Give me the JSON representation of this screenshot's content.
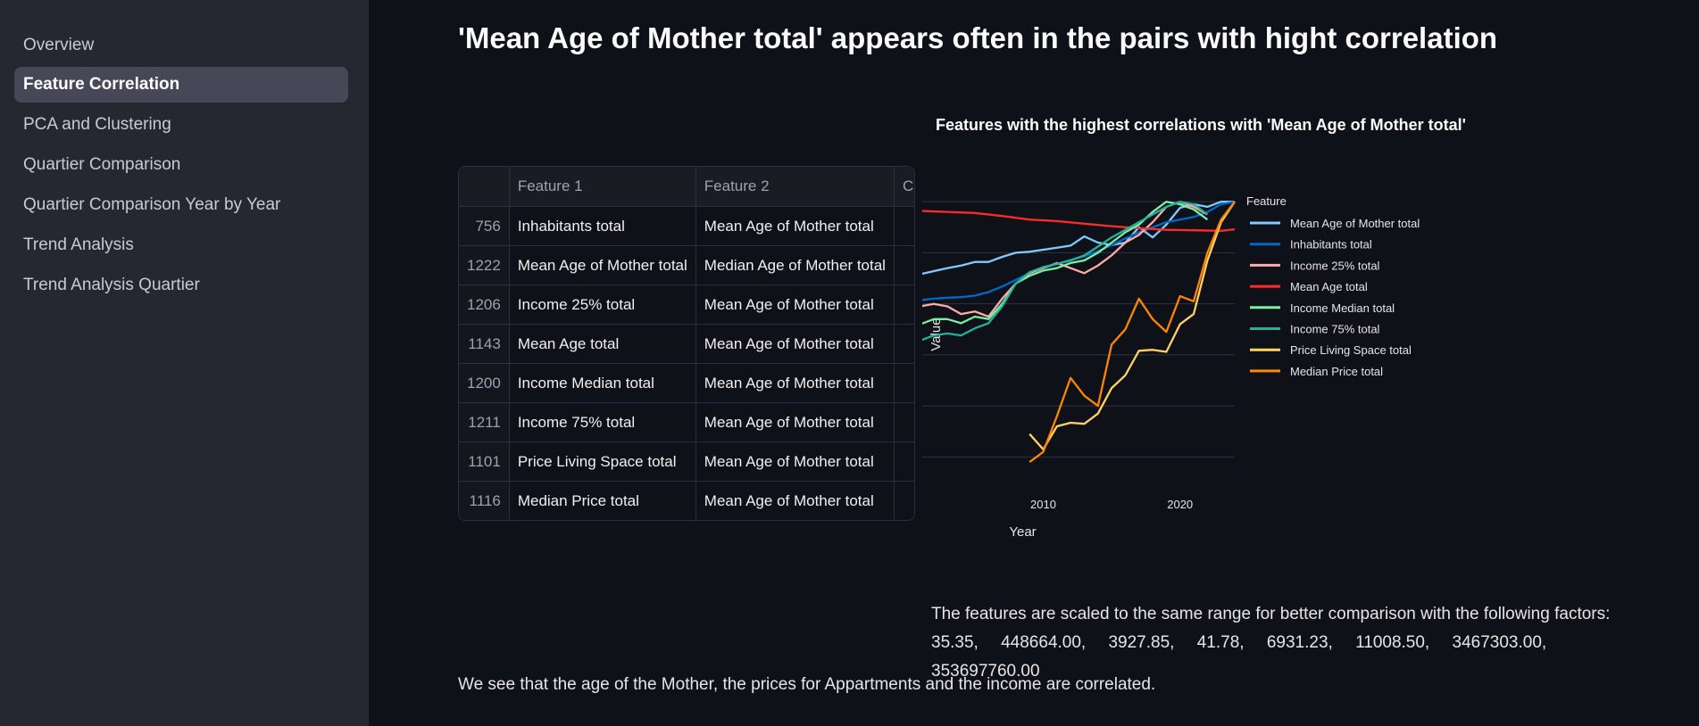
{
  "sidebar": {
    "items": [
      {
        "label": "Overview",
        "active": false
      },
      {
        "label": "Feature Correlation",
        "active": true
      },
      {
        "label": "PCA and Clustering",
        "active": false
      },
      {
        "label": "Quartier Comparison",
        "active": false
      },
      {
        "label": "Quartier Comparison Year by Year",
        "active": false
      },
      {
        "label": "Trend Analysis",
        "active": false
      },
      {
        "label": "Trend Analysis Quartier",
        "active": false
      }
    ]
  },
  "main": {
    "title": "'Mean Age of Mother total' appears often in the pairs with hight correlation",
    "table": {
      "headers": [
        "",
        "Feature 1",
        "Feature 2",
        "Co"
      ],
      "rows": [
        {
          "index": "756",
          "f1": "Inhabitants total",
          "f2": "Mean Age of Mother total"
        },
        {
          "index": "1222",
          "f1": "Mean Age of Mother total",
          "f2": "Median Age of Mother total"
        },
        {
          "index": "1206",
          "f1": "Income 25% total",
          "f2": "Mean Age of Mother total"
        },
        {
          "index": "1143",
          "f1": "Mean Age total",
          "f2": "Mean Age of Mother total"
        },
        {
          "index": "1200",
          "f1": "Income Median total",
          "f2": "Mean Age of Mother total"
        },
        {
          "index": "1211",
          "f1": "Income 75% total",
          "f2": "Mean Age of Mother total"
        },
        {
          "index": "1101",
          "f1": "Price Living Space total",
          "f2": "Mean Age of Mother total"
        },
        {
          "index": "1116",
          "f1": "Median Price total",
          "f2": "Mean Age of Mother total"
        }
      ]
    },
    "chart_title": "Features with the highest correlations with 'Mean Age of Mother total'",
    "caption": "The features are scaled to the same range for better comparison with the following factors:",
    "factors": [
      "35.35,",
      "448664.00,",
      "3927.85,",
      "41.78,",
      "6931.23,",
      "11008.50,",
      "3467303.00,",
      "353697760.00"
    ],
    "footer": "We see that the age of the Mother, the prices for Appartments and the income are correlated."
  },
  "colors": {
    "background": "#0e1117",
    "sidebar": "#262730",
    "active_item": "#464857"
  },
  "chart_data": {
    "type": "line",
    "xlabel": "Year",
    "ylabel": "Value",
    "xlim": [
      1993,
      2024
    ],
    "ylim": [
      0.45,
      1.03
    ],
    "xticks": [
      2000,
      2010,
      2020
    ],
    "yticks": [
      0.5,
      0.6,
      0.7,
      0.8,
      0.9,
      1
    ],
    "legend_title": "Feature",
    "legend_position": "right",
    "grid": true,
    "series": [
      {
        "name": "Mean Age of Mother total",
        "color": "#83c9ff",
        "x": [
          1993,
          1994,
          1995,
          1996,
          1997,
          1998,
          1999,
          2000,
          2001,
          2002,
          2003,
          2004,
          2005,
          2006,
          2007,
          2008,
          2009,
          2010,
          2011,
          2012,
          2013,
          2014,
          2015,
          2016,
          2017,
          2018,
          2019,
          2020,
          2021,
          2022,
          2023,
          2024
        ],
        "y": [
          0.835,
          0.84,
          0.84,
          0.838,
          0.848,
          0.852,
          0.85,
          0.852,
          0.858,
          0.864,
          0.87,
          0.875,
          0.882,
          0.882,
          0.892,
          0.9,
          0.902,
          0.906,
          0.91,
          0.914,
          0.932,
          0.92,
          0.915,
          0.92,
          0.95,
          0.93,
          0.955,
          0.988,
          0.995,
          0.99,
          1.0,
          1.0
        ]
      },
      {
        "name": "Inhabitants total",
        "color": "#0068c9",
        "x": [
          1993,
          1994,
          1995,
          1996,
          1997,
          1998,
          1999,
          2000,
          2001,
          2002,
          2003,
          2004,
          2005,
          2006,
          2007,
          2008,
          2009,
          2010,
          2011,
          2012,
          2013,
          2014,
          2015,
          2016,
          2017,
          2018,
          2019,
          2020,
          2021,
          2022,
          2023,
          2024
        ],
        "y": [
          0.805,
          0.805,
          0.805,
          0.803,
          0.801,
          0.801,
          0.803,
          0.805,
          0.807,
          0.81,
          0.812,
          0.813,
          0.816,
          0.823,
          0.834,
          0.847,
          0.86,
          0.87,
          0.878,
          0.886,
          0.893,
          0.903,
          0.915,
          0.928,
          0.94,
          0.95,
          0.96,
          0.965,
          0.97,
          0.98,
          0.995,
          1.0
        ]
      },
      {
        "name": "Income 25% total",
        "color": "#ffabab",
        "x": [
          1999,
          2000,
          2001,
          2002,
          2003,
          2004,
          2005,
          2006,
          2007,
          2008,
          2009,
          2010,
          2011,
          2012,
          2013,
          2014,
          2015,
          2016,
          2017,
          2018,
          2019,
          2020,
          2021,
          2022
        ],
        "y": [
          0.72,
          0.76,
          0.795,
          0.8,
          0.795,
          0.78,
          0.785,
          0.775,
          0.81,
          0.84,
          0.86,
          0.87,
          0.88,
          0.87,
          0.86,
          0.875,
          0.895,
          0.92,
          0.935,
          0.96,
          0.99,
          1.0,
          0.99,
          0.975
        ]
      },
      {
        "name": "Mean Age total",
        "color": "#ff2b2b",
        "x": [
          1993,
          1995,
          1997,
          1999,
          2001,
          2003,
          2005,
          2007,
          2009,
          2011,
          2013,
          2015,
          2017,
          2019,
          2021,
          2023,
          2024
        ],
        "y": [
          1.0,
          0.995,
          0.99,
          0.985,
          0.982,
          0.98,
          0.978,
          0.972,
          0.965,
          0.962,
          0.957,
          0.952,
          0.948,
          0.945,
          0.944,
          0.943,
          0.946
        ]
      },
      {
        "name": "Income Median total",
        "color": "#7defa1",
        "x": [
          1999,
          2000,
          2001,
          2002,
          2003,
          2004,
          2005,
          2006,
          2007,
          2008,
          2009,
          2010,
          2011,
          2012,
          2013,
          2014,
          2015,
          2016,
          2017,
          2018,
          2019,
          2020,
          2021,
          2022
        ],
        "y": [
          0.685,
          0.73,
          0.76,
          0.77,
          0.77,
          0.762,
          0.775,
          0.77,
          0.8,
          0.84,
          0.855,
          0.865,
          0.87,
          0.88,
          0.885,
          0.9,
          0.92,
          0.94,
          0.955,
          0.98,
          1.0,
          0.995,
          0.985,
          0.965
        ]
      },
      {
        "name": "Income 75% total",
        "color": "#29b09d",
        "x": [
          1999,
          2000,
          2001,
          2002,
          2003,
          2004,
          2005,
          2006,
          2007,
          2008,
          2009,
          2010,
          2011,
          2012,
          2013,
          2014,
          2015,
          2016,
          2017,
          2018,
          2019,
          2020,
          2021,
          2022
        ],
        "y": [
          0.658,
          0.695,
          0.728,
          0.738,
          0.742,
          0.738,
          0.752,
          0.762,
          0.795,
          0.84,
          0.862,
          0.872,
          0.878,
          0.885,
          0.895,
          0.912,
          0.93,
          0.945,
          0.96,
          0.975,
          0.99,
          1.0,
          0.995,
          0.975
        ]
      },
      {
        "name": "Price Living Space total",
        "color": "#ffd16a",
        "x": [
          2009,
          2010,
          2011,
          2012,
          2013,
          2014,
          2015,
          2016,
          2017,
          2018,
          2019,
          2020,
          2021,
          2022,
          2023,
          2024
        ],
        "y": [
          0.545,
          0.515,
          0.56,
          0.567,
          0.565,
          0.585,
          0.635,
          0.66,
          0.708,
          0.71,
          0.706,
          0.76,
          0.78,
          0.885,
          0.96,
          1.0
        ]
      },
      {
        "name": "Median Price total",
        "color": "#ff8700",
        "x": [
          2009,
          2010,
          2011,
          2012,
          2013,
          2014,
          2015,
          2016,
          2017,
          2018,
          2019,
          2020,
          2021,
          2022,
          2023,
          2024
        ],
        "y": [
          0.49,
          0.51,
          0.58,
          0.655,
          0.62,
          0.6,
          0.72,
          0.75,
          0.81,
          0.77,
          0.745,
          0.815,
          0.805,
          0.9,
          0.965,
          1.0
        ]
      }
    ]
  }
}
